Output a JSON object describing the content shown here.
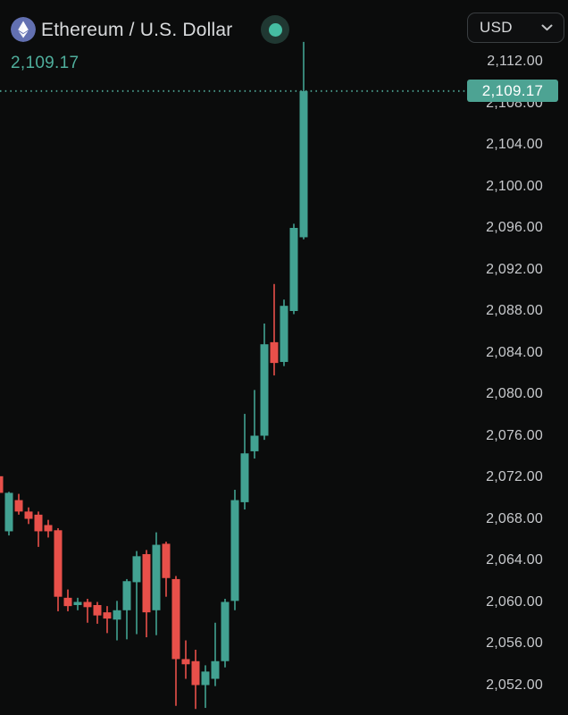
{
  "header": {
    "title": "Ethereum / U.S. Dollar",
    "last_price": "2,109.17",
    "currency_selector": {
      "value": "USD"
    },
    "icons": {
      "symbol_logo": "ethereum-icon",
      "live_status": "live-dot-icon",
      "currency_chevron": "chevron-down-icon"
    }
  },
  "colors": {
    "background": "#0b0c0c",
    "up": "#42a292",
    "down": "#e8504a",
    "badge_bg": "#4da393",
    "badge_text": "#ffffff",
    "axis_text": "#c7c9cc",
    "title_text": "#d9dbdd",
    "subtitle_green": "#4fae9c",
    "price_line": "#4da393",
    "eth_logo_bg": "#6b7ac1",
    "live_outer": "#203832",
    "live_inner": "#45bda2"
  },
  "chart_data": {
    "type": "candlestick",
    "title": "Ethereum / U.S. Dollar",
    "currency": "USD",
    "current_price": 2109.17,
    "current_price_label": "2,109.17",
    "price_line_style": "dotted",
    "grid": false,
    "x_axis": {
      "labels_visible": false
    },
    "y_axis": {
      "side": "right",
      "min": 2049.7,
      "max": 2113.9,
      "tick_step": 4,
      "ticks": [
        2112,
        2108,
        2104,
        2100,
        2096,
        2092,
        2088,
        2084,
        2080,
        2076,
        2072,
        2068,
        2064,
        2060,
        2056,
        2052
      ],
      "tick_labels": [
        "2,112.00",
        "2,108.00",
        "2,104.00",
        "2,100.00",
        "2,096.00",
        "2,092.00",
        "2,088.00",
        "2,084.00",
        "2,080.00",
        "2,076.00",
        "2,072.00",
        "2,068.00",
        "2,064.00",
        "2,060.00",
        "2,056.00",
        "2,052.00"
      ]
    },
    "candles": [
      {
        "o": 2072.1,
        "h": 2072.4,
        "l": 2070.3,
        "c": 2070.5
      },
      {
        "o": 2066.8,
        "h": 2070.6,
        "l": 2066.4,
        "c": 2070.5
      },
      {
        "o": 2069.8,
        "h": 2070.4,
        "l": 2068.4,
        "c": 2068.7
      },
      {
        "o": 2068.7,
        "h": 2069.1,
        "l": 2067.5,
        "c": 2068.0
      },
      {
        "o": 2068.4,
        "h": 2068.7,
        "l": 2065.3,
        "c": 2066.8
      },
      {
        "o": 2067.4,
        "h": 2067.9,
        "l": 2066.2,
        "c": 2066.8
      },
      {
        "o": 2066.9,
        "h": 2067.1,
        "l": 2059.1,
        "c": 2060.5
      },
      {
        "o": 2060.4,
        "h": 2061.2,
        "l": 2059.1,
        "c": 2059.6
      },
      {
        "o": 2059.7,
        "h": 2060.4,
        "l": 2059.2,
        "c": 2060.0
      },
      {
        "o": 2060.0,
        "h": 2060.3,
        "l": 2058.0,
        "c": 2059.5
      },
      {
        "o": 2059.7,
        "h": 2060.0,
        "l": 2057.9,
        "c": 2058.7
      },
      {
        "o": 2059.0,
        "h": 2059.6,
        "l": 2057.0,
        "c": 2058.4
      },
      {
        "o": 2058.3,
        "h": 2060.1,
        "l": 2056.3,
        "c": 2059.2
      },
      {
        "o": 2059.2,
        "h": 2062.2,
        "l": 2056.4,
        "c": 2062.0
      },
      {
        "o": 2061.9,
        "h": 2064.9,
        "l": 2056.9,
        "c": 2064.4
      },
      {
        "o": 2064.6,
        "h": 2065.0,
        "l": 2056.6,
        "c": 2059.0
      },
      {
        "o": 2059.2,
        "h": 2066.7,
        "l": 2056.8,
        "c": 2065.5
      },
      {
        "o": 2065.6,
        "h": 2065.8,
        "l": 2060.5,
        "c": 2062.3
      },
      {
        "o": 2062.2,
        "h": 2062.5,
        "l": 2050.0,
        "c": 2054.5
      },
      {
        "o": 2054.5,
        "h": 2056.3,
        "l": 2052.6,
        "c": 2054.0
      },
      {
        "o": 2054.3,
        "h": 2055.4,
        "l": 2049.7,
        "c": 2052.0
      },
      {
        "o": 2052.0,
        "h": 2053.9,
        "l": 2049.8,
        "c": 2053.3
      },
      {
        "o": 2052.6,
        "h": 2058.0,
        "l": 2051.9,
        "c": 2054.3
      },
      {
        "o": 2054.3,
        "h": 2060.3,
        "l": 2053.7,
        "c": 2060.0
      },
      {
        "o": 2060.1,
        "h": 2070.8,
        "l": 2059.2,
        "c": 2069.8
      },
      {
        "o": 2069.6,
        "h": 2078.1,
        "l": 2068.9,
        "c": 2074.3
      },
      {
        "o": 2074.5,
        "h": 2080.4,
        "l": 2073.8,
        "c": 2076.0
      },
      {
        "o": 2076.0,
        "h": 2086.8,
        "l": 2075.6,
        "c": 2084.8
      },
      {
        "o": 2085.0,
        "h": 2090.6,
        "l": 2081.8,
        "c": 2083.0
      },
      {
        "o": 2083.1,
        "h": 2089.1,
        "l": 2082.7,
        "c": 2088.5
      },
      {
        "o": 2088.0,
        "h": 2096.4,
        "l": 2087.7,
        "c": 2096.0
      },
      {
        "o": 2095.1,
        "h": 2113.9,
        "l": 2094.9,
        "c": 2109.17
      }
    ]
  }
}
